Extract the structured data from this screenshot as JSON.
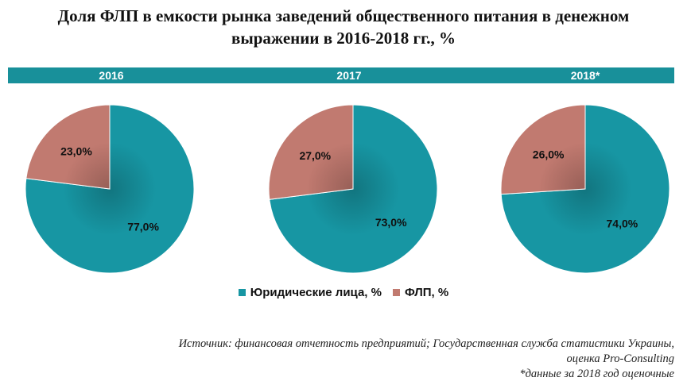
{
  "title": {
    "line1": "Доля ФЛП в емкости рынка заведений общественного питания в денежном",
    "line2": "выражении в 2016-2018 гг., %"
  },
  "legend": {
    "items": [
      {
        "label": "Юридические лица, %",
        "color": "#1796a3"
      },
      {
        "label": "ФЛП, %",
        "color": "#c17a70"
      }
    ]
  },
  "source": {
    "line1": "Источник: финансовая отчетность предприятий; Государственная служба статистики Украины,",
    "line2": "оценка Pro-Consulting",
    "line3": "*данные за 2018 год оценочные"
  },
  "chart_data": [
    {
      "type": "pie",
      "title": "2016",
      "categories": [
        "Юридические лица, %",
        "ФЛП, %"
      ],
      "values": [
        77.0,
        23.0
      ],
      "labels": [
        "77,0%",
        "23,0%"
      ],
      "colors": [
        "#1796a3",
        "#c17a70"
      ]
    },
    {
      "type": "pie",
      "title": "2017",
      "categories": [
        "Юридические лица, %",
        "ФЛП, %"
      ],
      "values": [
        73.0,
        27.0
      ],
      "labels": [
        "73,0%",
        "27,0%"
      ],
      "colors": [
        "#1796a3",
        "#c17a70"
      ]
    },
    {
      "type": "pie",
      "title": "2018*",
      "categories": [
        "Юридические лица, %",
        "ФЛП, %"
      ],
      "values": [
        74.0,
        26.0
      ],
      "labels": [
        "74,0%",
        "26,0%"
      ],
      "colors": [
        "#1796a3",
        "#c17a70"
      ]
    }
  ]
}
